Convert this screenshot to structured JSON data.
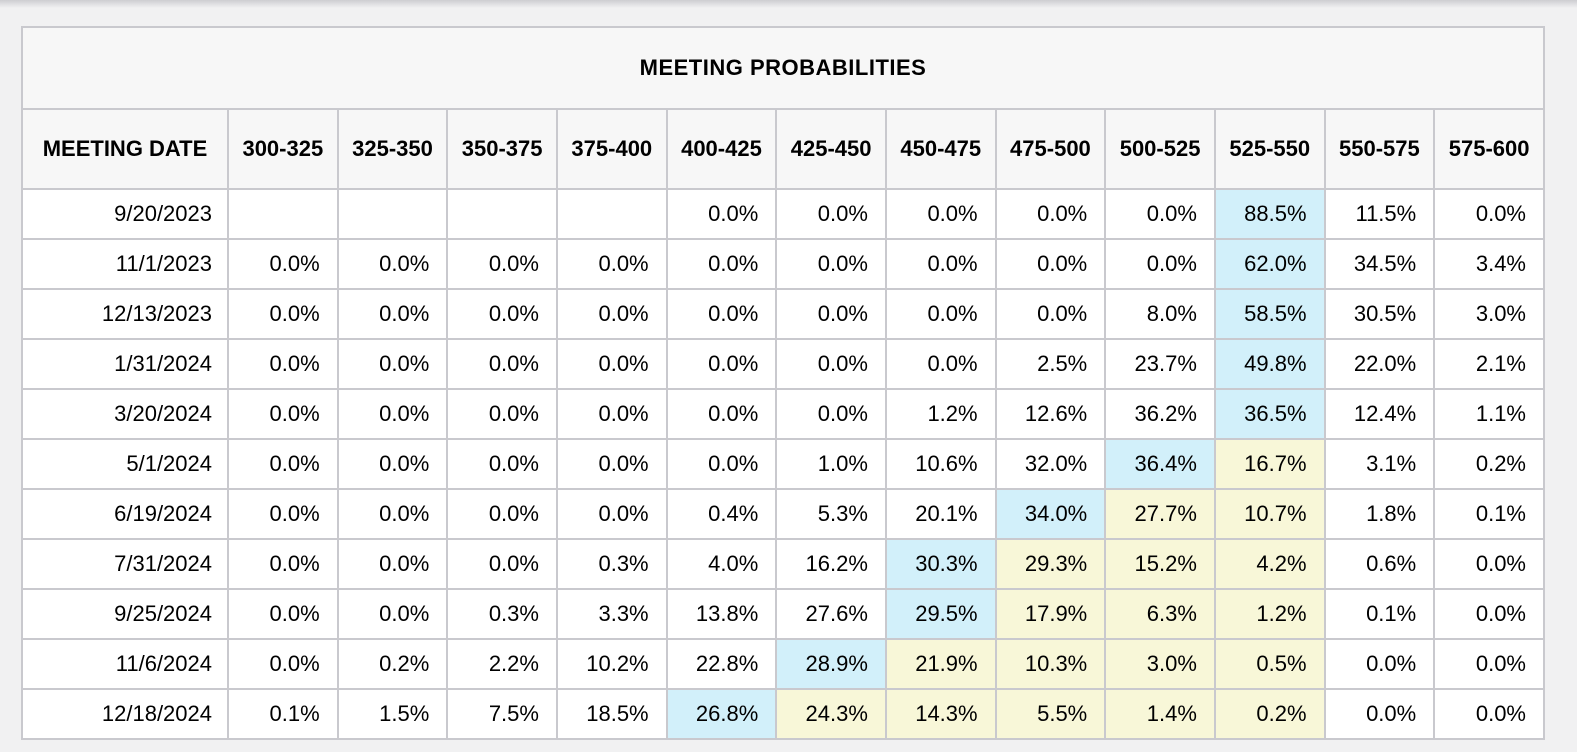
{
  "table": {
    "title": "MEETING PROBABILITIES",
    "date_column_header": "MEETING DATE",
    "rate_range_headers": [
      "300-325",
      "325-350",
      "350-375",
      "375-400",
      "400-425",
      "425-450",
      "450-475",
      "475-500",
      "500-525",
      "525-550",
      "550-575",
      "575-600"
    ],
    "highlight_colors": {
      "blue": "#d2f0fa",
      "yellow": "#f8f7d8"
    },
    "rows": [
      {
        "date": "9/20/2023",
        "values": [
          "",
          "",
          "",
          "",
          "0.0%",
          "0.0%",
          "0.0%",
          "0.0%",
          "0.0%",
          "88.5%",
          "11.5%",
          "0.0%"
        ],
        "highlights": [
          "",
          "",
          "",
          "",
          "",
          "",
          "",
          "",
          "",
          "blue",
          "",
          ""
        ]
      },
      {
        "date": "11/1/2023",
        "values": [
          "0.0%",
          "0.0%",
          "0.0%",
          "0.0%",
          "0.0%",
          "0.0%",
          "0.0%",
          "0.0%",
          "0.0%",
          "62.0%",
          "34.5%",
          "3.4%"
        ],
        "highlights": [
          "",
          "",
          "",
          "",
          "",
          "",
          "",
          "",
          "",
          "blue",
          "",
          ""
        ]
      },
      {
        "date": "12/13/2023",
        "values": [
          "0.0%",
          "0.0%",
          "0.0%",
          "0.0%",
          "0.0%",
          "0.0%",
          "0.0%",
          "0.0%",
          "8.0%",
          "58.5%",
          "30.5%",
          "3.0%"
        ],
        "highlights": [
          "",
          "",
          "",
          "",
          "",
          "",
          "",
          "",
          "",
          "blue",
          "",
          ""
        ]
      },
      {
        "date": "1/31/2024",
        "values": [
          "0.0%",
          "0.0%",
          "0.0%",
          "0.0%",
          "0.0%",
          "0.0%",
          "0.0%",
          "2.5%",
          "23.7%",
          "49.8%",
          "22.0%",
          "2.1%"
        ],
        "highlights": [
          "",
          "",
          "",
          "",
          "",
          "",
          "",
          "",
          "",
          "blue",
          "",
          ""
        ]
      },
      {
        "date": "3/20/2024",
        "values": [
          "0.0%",
          "0.0%",
          "0.0%",
          "0.0%",
          "0.0%",
          "0.0%",
          "1.2%",
          "12.6%",
          "36.2%",
          "36.5%",
          "12.4%",
          "1.1%"
        ],
        "highlights": [
          "",
          "",
          "",
          "",
          "",
          "",
          "",
          "",
          "",
          "blue",
          "",
          ""
        ]
      },
      {
        "date": "5/1/2024",
        "values": [
          "0.0%",
          "0.0%",
          "0.0%",
          "0.0%",
          "0.0%",
          "1.0%",
          "10.6%",
          "32.0%",
          "36.4%",
          "16.7%",
          "3.1%",
          "0.2%"
        ],
        "highlights": [
          "",
          "",
          "",
          "",
          "",
          "",
          "",
          "",
          "blue",
          "yellow",
          "",
          ""
        ]
      },
      {
        "date": "6/19/2024",
        "values": [
          "0.0%",
          "0.0%",
          "0.0%",
          "0.0%",
          "0.4%",
          "5.3%",
          "20.1%",
          "34.0%",
          "27.7%",
          "10.7%",
          "1.8%",
          "0.1%"
        ],
        "highlights": [
          "",
          "",
          "",
          "",
          "",
          "",
          "",
          "blue",
          "yellow",
          "yellow",
          "",
          ""
        ]
      },
      {
        "date": "7/31/2024",
        "values": [
          "0.0%",
          "0.0%",
          "0.0%",
          "0.3%",
          "4.0%",
          "16.2%",
          "30.3%",
          "29.3%",
          "15.2%",
          "4.2%",
          "0.6%",
          "0.0%"
        ],
        "highlights": [
          "",
          "",
          "",
          "",
          "",
          "",
          "blue",
          "yellow",
          "yellow",
          "yellow",
          "",
          ""
        ]
      },
      {
        "date": "9/25/2024",
        "values": [
          "0.0%",
          "0.0%",
          "0.3%",
          "3.3%",
          "13.8%",
          "27.6%",
          "29.5%",
          "17.9%",
          "6.3%",
          "1.2%",
          "0.1%",
          "0.0%"
        ],
        "highlights": [
          "",
          "",
          "",
          "",
          "",
          "",
          "blue",
          "yellow",
          "yellow",
          "yellow",
          "",
          ""
        ]
      },
      {
        "date": "11/6/2024",
        "values": [
          "0.0%",
          "0.2%",
          "2.2%",
          "10.2%",
          "22.8%",
          "28.9%",
          "21.9%",
          "10.3%",
          "3.0%",
          "0.5%",
          "0.0%",
          "0.0%"
        ],
        "highlights": [
          "",
          "",
          "",
          "",
          "",
          "blue",
          "yellow",
          "yellow",
          "yellow",
          "yellow",
          "",
          ""
        ]
      },
      {
        "date": "12/18/2024",
        "values": [
          "0.1%",
          "1.5%",
          "7.5%",
          "18.5%",
          "26.8%",
          "24.3%",
          "14.3%",
          "5.5%",
          "1.4%",
          "0.2%",
          "0.0%",
          "0.0%"
        ],
        "highlights": [
          "",
          "",
          "",
          "",
          "blue",
          "yellow",
          "yellow",
          "yellow",
          "yellow",
          "yellow",
          "",
          ""
        ]
      }
    ]
  },
  "chart_data": {
    "type": "table",
    "title": "MEETING PROBABILITIES",
    "row_label": "MEETING DATE",
    "columns": [
      "300-325",
      "325-350",
      "350-375",
      "375-400",
      "400-425",
      "425-450",
      "450-475",
      "475-500",
      "500-525",
      "525-550",
      "550-575",
      "575-600"
    ],
    "rows": [
      {
        "date": "9/20/2023",
        "probabilities_pct": [
          null,
          null,
          null,
          null,
          0.0,
          0.0,
          0.0,
          0.0,
          0.0,
          88.5,
          11.5,
          0.0
        ]
      },
      {
        "date": "11/1/2023",
        "probabilities_pct": [
          0.0,
          0.0,
          0.0,
          0.0,
          0.0,
          0.0,
          0.0,
          0.0,
          0.0,
          62.0,
          34.5,
          3.4
        ]
      },
      {
        "date": "12/13/2023",
        "probabilities_pct": [
          0.0,
          0.0,
          0.0,
          0.0,
          0.0,
          0.0,
          0.0,
          0.0,
          8.0,
          58.5,
          30.5,
          3.0
        ]
      },
      {
        "date": "1/31/2024",
        "probabilities_pct": [
          0.0,
          0.0,
          0.0,
          0.0,
          0.0,
          0.0,
          0.0,
          2.5,
          23.7,
          49.8,
          22.0,
          2.1
        ]
      },
      {
        "date": "3/20/2024",
        "probabilities_pct": [
          0.0,
          0.0,
          0.0,
          0.0,
          0.0,
          0.0,
          1.2,
          12.6,
          36.2,
          36.5,
          12.4,
          1.1
        ]
      },
      {
        "date": "5/1/2024",
        "probabilities_pct": [
          0.0,
          0.0,
          0.0,
          0.0,
          0.0,
          1.0,
          10.6,
          32.0,
          36.4,
          16.7,
          3.1,
          0.2
        ]
      },
      {
        "date": "6/19/2024",
        "probabilities_pct": [
          0.0,
          0.0,
          0.0,
          0.0,
          0.4,
          5.3,
          20.1,
          34.0,
          27.7,
          10.7,
          1.8,
          0.1
        ]
      },
      {
        "date": "7/31/2024",
        "probabilities_pct": [
          0.0,
          0.0,
          0.0,
          0.3,
          4.0,
          16.2,
          30.3,
          29.3,
          15.2,
          4.2,
          0.6,
          0.0
        ]
      },
      {
        "date": "9/25/2024",
        "probabilities_pct": [
          0.0,
          0.0,
          0.3,
          3.3,
          13.8,
          27.6,
          29.5,
          17.9,
          6.3,
          1.2,
          0.1,
          0.0
        ]
      },
      {
        "date": "11/6/2024",
        "probabilities_pct": [
          0.0,
          0.2,
          2.2,
          10.2,
          22.8,
          28.9,
          21.9,
          10.3,
          3.0,
          0.5,
          0.0,
          0.0
        ]
      },
      {
        "date": "12/18/2024",
        "probabilities_pct": [
          0.1,
          1.5,
          7.5,
          18.5,
          26.8,
          24.3,
          14.3,
          5.5,
          1.4,
          0.2,
          0.0,
          0.0
        ]
      }
    ]
  }
}
